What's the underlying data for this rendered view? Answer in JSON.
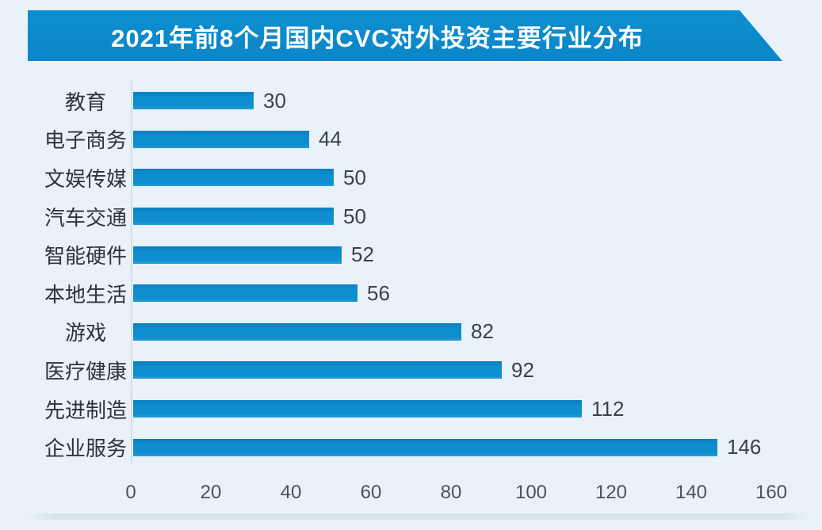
{
  "page": {
    "background_color": "#e9f2f9"
  },
  "banner": {
    "title": "2021年前8个月国内CVC对外投资主要行业分布",
    "background_color": "#0d8bcd",
    "text_color": "#ffffff"
  },
  "chart_data": {
    "type": "bar",
    "orientation": "horizontal",
    "title": "2021年前8个月国内CVC对外投资主要行业分布",
    "categories": [
      "教育",
      "电子商务",
      "文娱传媒",
      "汽车交通",
      "智能硬件",
      "本地生活",
      "游戏",
      "医疗健康",
      "先进制造",
      "企业服务"
    ],
    "values": [
      30,
      44,
      50,
      50,
      52,
      56,
      82,
      92,
      112,
      146
    ],
    "value_labels_shown": true,
    "xlabel": "",
    "ylabel": "",
    "xlim": [
      0,
      160
    ],
    "x_ticks": [
      0,
      20,
      40,
      60,
      80,
      100,
      120,
      140,
      160
    ],
    "grid": "off",
    "legend": "none",
    "bar_color": "#0f8ecf"
  }
}
